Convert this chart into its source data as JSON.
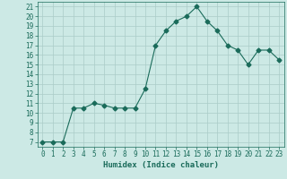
{
  "x": [
    0,
    1,
    2,
    3,
    4,
    5,
    6,
    7,
    8,
    9,
    10,
    11,
    12,
    13,
    14,
    15,
    16,
    17,
    18,
    19,
    20,
    21,
    22,
    23
  ],
  "y": [
    7,
    7,
    7,
    10.5,
    10.5,
    11,
    10.8,
    10.5,
    10.5,
    10.5,
    12.5,
    17,
    18.5,
    19.5,
    20,
    21,
    19.5,
    18.5,
    17,
    16.5,
    15,
    16.5,
    16.5,
    15.5
  ],
  "line_color": "#1a6b5a",
  "marker": "D",
  "marker_size": 2.5,
  "bg_color": "#cce9e5",
  "grid_color": "#aaccc8",
  "xlabel": "Humidex (Indice chaleur)",
  "xlim": [
    -0.5,
    23.5
  ],
  "ylim": [
    6.5,
    21.5
  ],
  "yticks": [
    7,
    8,
    9,
    10,
    11,
    12,
    13,
    14,
    15,
    16,
    17,
    18,
    19,
    20,
    21
  ],
  "xticks": [
    0,
    1,
    2,
    3,
    4,
    5,
    6,
    7,
    8,
    9,
    10,
    11,
    12,
    13,
    14,
    15,
    16,
    17,
    18,
    19,
    20,
    21,
    22,
    23
  ],
  "tick_color": "#1a6b5a",
  "label_color": "#1a6b5a",
  "tick_fontsize": 5.5,
  "xlabel_fontsize": 6.5
}
